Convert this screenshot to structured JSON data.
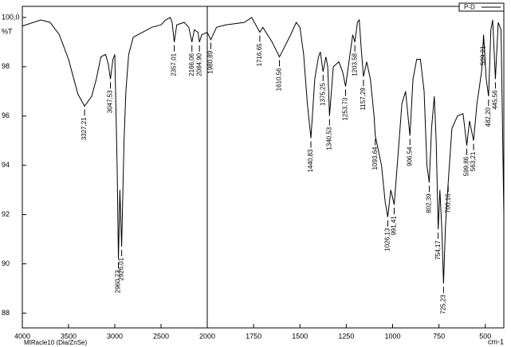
{
  "chart_data": {
    "type": "line",
    "y_label": "%T",
    "x_label": "cm-1",
    "note": "MIRacle10 (Dia/ZnSe)",
    "xlim": [
      4000,
      400
    ],
    "x_scale_break": 2000,
    "ylim": [
      87.4,
      100.45
    ],
    "xticks": [
      4000,
      3500,
      3000,
      2500,
      2000,
      1750,
      1500,
      1250,
      1000,
      750,
      500
    ],
    "yticks": [
      88,
      90,
      92,
      94,
      96,
      98,
      {
        "value": 100,
        "label": "100,0"
      }
    ],
    "x": [
      4000,
      3800,
      3700,
      3600,
      3500,
      3400,
      3327.21,
      3250,
      3200,
      3150,
      3100,
      3070,
      3047.53,
      3020,
      3000,
      2975,
      2960.73,
      2945,
      2926.01,
      2900,
      2880,
      2850,
      2800,
      2700,
      2600,
      2500,
      2450,
      2400,
      2380,
      2357.01,
      2330,
      2250,
      2200,
      2166.06,
      2140,
      2100,
      2084.9,
      2060,
      2000,
      1980.89,
      1950,
      1900,
      1800,
      1760,
      1716.65,
      1700,
      1650,
      1610.56,
      1590,
      1550,
      1520,
      1500,
      1480,
      1460,
      1440.83,
      1420,
      1400,
      1390,
      1375.25,
      1360,
      1350,
      1340.53,
      1320,
      1290,
      1270,
      1253.73,
      1230,
      1215,
      1203.58,
      1190,
      1180,
      1170,
      1157.29,
      1140,
      1120,
      1100,
      1093.64,
      1060,
      1040,
      1026.13,
      1010,
      991.41,
      970,
      950,
      930,
      906.54,
      890,
      870,
      850,
      830,
      815,
      802.39,
      790,
      775,
      765,
      754.17,
      745,
      735,
      725.23,
      715,
      700.16,
      680,
      650,
      620,
      599.86,
      585,
      563.21,
      545,
      520,
      509.21,
      495,
      482.2,
      470,
      460,
      445.56,
      430,
      415,
      400
    ],
    "series": [
      {
        "name": "P-D",
        "color": "#000000",
        "values": [
          99.65,
          99.9,
          99.8,
          99.3,
          98.3,
          96.9,
          96.4,
          96.8,
          97.5,
          98.4,
          98.5,
          98.1,
          97.5,
          98.3,
          98.5,
          94,
          90.2,
          93,
          90.7,
          95,
          97,
          98.5,
          99.2,
          99.4,
          99.6,
          99.7,
          99.9,
          100,
          99.8,
          99,
          99.7,
          99.8,
          99.6,
          99,
          99.5,
          99.4,
          99,
          99.3,
          99.4,
          99.1,
          99.6,
          99.7,
          99.8,
          100,
          99.4,
          99.6,
          99,
          98.4,
          98.7,
          99.3,
          99.8,
          99.6,
          98.5,
          96.5,
          95.1,
          97.5,
          98.4,
          98.6,
          97.8,
          98.4,
          98,
          96,
          98,
          98.2,
          97.8,
          97.2,
          98.5,
          99.3,
          99,
          99.8,
          99.9,
          98.8,
          97.6,
          98.2,
          97.5,
          96,
          95.2,
          94,
          92.5,
          91.9,
          93,
          92.4,
          94.5,
          96.5,
          97,
          95.2,
          97.5,
          98.3,
          98.3,
          97,
          94,
          93.3,
          95.5,
          96.8,
          95,
          91.4,
          93,
          91.5,
          89.2,
          91.5,
          93.3,
          95.5,
          96,
          96.1,
          94.8,
          95.8,
          95,
          96.5,
          97.8,
          99.3,
          97.5,
          96.8,
          99.5,
          99.9,
          97.5,
          99.8,
          99.5,
          92
        ]
      }
    ],
    "annotations": [
      {
        "x": 3327.21,
        "y": 96.4,
        "label": "3327,21"
      },
      {
        "x": 3047.53,
        "y": 97.5,
        "label": "3047,53"
      },
      {
        "x": 2960.73,
        "y": 90.2,
        "label": "2960,73"
      },
      {
        "x": 2926.01,
        "y": 90.7,
        "label": "2926,01"
      },
      {
        "x": 2357.01,
        "y": 99,
        "label": "2357,01"
      },
      {
        "x": 2166.06,
        "y": 99,
        "label": "2166,06"
      },
      {
        "x": 2084.9,
        "y": 99,
        "label": "2084,90"
      },
      {
        "x": 1980.89,
        "y": 99.1,
        "label": "1980,89"
      },
      {
        "x": 1716.65,
        "y": 99.4,
        "label": "1716,65"
      },
      {
        "x": 1610.56,
        "y": 98.4,
        "label": "1610,56"
      },
      {
        "x": 1440.83,
        "y": 95.1,
        "label": "1440,83"
      },
      {
        "x": 1375.25,
        "y": 97.8,
        "label": "1375,25"
      },
      {
        "x": 1340.53,
        "y": 96,
        "label": "1340,53"
      },
      {
        "x": 1253.73,
        "y": 97.2,
        "label": "1253,73"
      },
      {
        "x": 1203.58,
        "y": 99,
        "label": "1203,58"
      },
      {
        "x": 1157.29,
        "y": 97.6,
        "label": "1157,29"
      },
      {
        "x": 1093.64,
        "y": 95.2,
        "label": "1093,64"
      },
      {
        "x": 1026.13,
        "y": 91.9,
        "label": "1026,13"
      },
      {
        "x": 991.41,
        "y": 92.4,
        "label": "991,41"
      },
      {
        "x": 906.54,
        "y": 95.2,
        "label": "906,54"
      },
      {
        "x": 802.39,
        "y": 93.3,
        "label": "802,39"
      },
      {
        "x": 754.17,
        "y": 91.4,
        "label": "754,17"
      },
      {
        "x": 725.23,
        "y": 89.2,
        "label": "725,23"
      },
      {
        "x": 700.16,
        "y": 93.3,
        "label": "700,16"
      },
      {
        "x": 599.86,
        "y": 94.8,
        "label": "599,86"
      },
      {
        "x": 563.21,
        "y": 95,
        "label": "563,21"
      },
      {
        "x": 509.21,
        "y": 99.3,
        "label": "509,21"
      },
      {
        "x": 482.2,
        "y": 96.8,
        "label": "482,20"
      },
      {
        "x": 445.56,
        "y": 97.5,
        "label": "445,56"
      }
    ]
  }
}
